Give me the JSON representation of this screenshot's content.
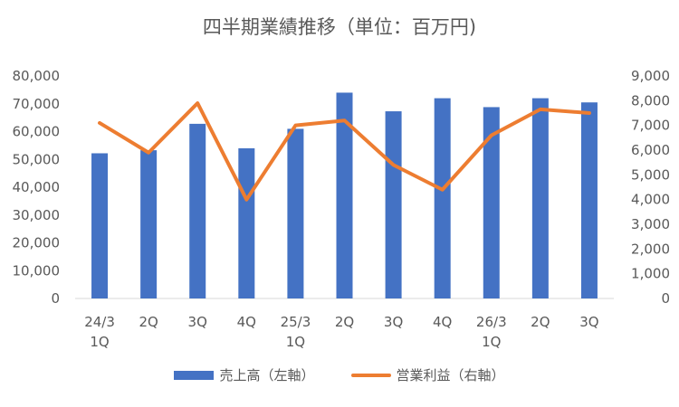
{
  "chart_data": {
    "type": "bar",
    "title": "四半期業績推移（単位：百万円)",
    "categories": [
      [
        "24/3",
        "1Q"
      ],
      [
        "2Q"
      ],
      [
        "3Q"
      ],
      [
        "4Q"
      ],
      [
        "25/3",
        "1Q"
      ],
      [
        "2Q"
      ],
      [
        "3Q"
      ],
      [
        "4Q"
      ],
      [
        "26/3",
        "1Q"
      ],
      [
        "2Q"
      ],
      [
        "3Q"
      ]
    ],
    "y_left": {
      "min": 0,
      "max": 80000,
      "step": 10000,
      "tick_labels": [
        "0",
        "10,000",
        "20,000",
        "30,000",
        "40,000",
        "50,000",
        "60,000",
        "70,000",
        "80,000"
      ]
    },
    "y_right": {
      "min": 0,
      "max": 9000,
      "step": 1000,
      "tick_labels": [
        "0",
        "1,000",
        "2,000",
        "3,000",
        "4,000",
        "5,000",
        "6,000",
        "7,000",
        "8,000",
        "9,000"
      ]
    },
    "series": [
      {
        "name": "売上高（左軸）",
        "type": "bar",
        "axis": "left",
        "color": "#4472C4",
        "values": [
          52200,
          53300,
          62800,
          54000,
          61000,
          74000,
          67300,
          72000,
          68800,
          72000,
          70500
        ]
      },
      {
        "name": "営業利益（右軸）",
        "type": "line",
        "axis": "right",
        "color": "#ED7D31",
        "values": [
          7100,
          5900,
          7900,
          4000,
          7000,
          7200,
          5400,
          4400,
          6600,
          7650,
          7500
        ]
      }
    ],
    "grid": false,
    "legend_position": "bottom"
  }
}
